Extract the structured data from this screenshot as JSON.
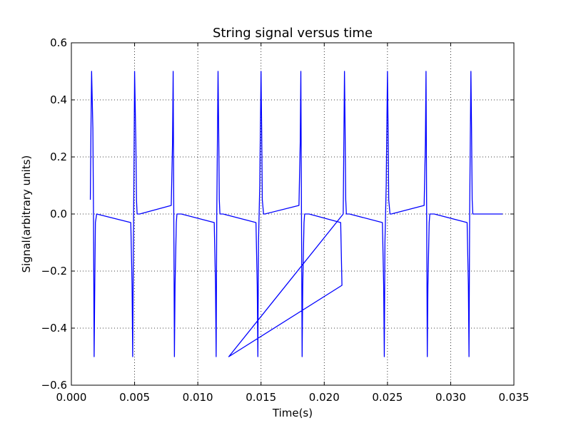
{
  "chart_data": {
    "type": "line",
    "title": "String signal versus time",
    "xlabel": "Time(s)",
    "ylabel": "Signal(arbitrary units)",
    "xlim": [
      0.0,
      0.035
    ],
    "ylim": [
      -0.6,
      0.6
    ],
    "grid": true,
    "x_ticks": [
      "0.000",
      "0.005",
      "0.010",
      "0.015",
      "0.020",
      "0.025",
      "0.030",
      "0.035"
    ],
    "y_ticks": [
      "−0.6",
      "−0.4",
      "−0.2",
      "0.0",
      "0.2",
      "0.4",
      "0.6"
    ],
    "x_tick_values": [
      0.0,
      0.005,
      0.01,
      0.015,
      0.02,
      0.025,
      0.03,
      0.035
    ],
    "y_tick_values": [
      -0.6,
      -0.4,
      -0.2,
      0.0,
      0.2,
      0.4,
      0.6
    ],
    "series": [
      {
        "color": "#0000ff",
        "x": [
          0.0015,
          0.00155,
          0.0016,
          0.0017,
          0.00175,
          0.0018,
          0.00185,
          0.0019,
          0.002,
          0.0047,
          0.0048,
          0.00485,
          0.0049,
          0.00495,
          0.005,
          0.0051,
          0.00515,
          0.0052,
          0.0053,
          0.0054,
          0.0079,
          0.008,
          0.00805,
          0.0081,
          0.00815,
          0.0082,
          0.0083,
          0.00835,
          0.0084,
          0.00845,
          0.0085,
          0.0086,
          0.0087,
          0.0113,
          0.0114,
          0.01145,
          0.0115,
          0.0116,
          0.01165,
          0.0117,
          0.01175,
          0.0118,
          0.0119,
          0.012,
          0.0146,
          0.0147,
          0.01475,
          0.0148,
          0.0149,
          0.015,
          0.01505,
          0.0151,
          0.0152,
          0.0153,
          0.018,
          0.0181,
          0.01815,
          0.0182,
          0.01825,
          0.0183,
          0.0184,
          0.01845,
          0.0185,
          0.01855,
          0.0186,
          0.0187,
          0.0188,
          0.0213,
          0.0214,
          0.01245,
          0.0215,
          0.0216,
          0.02165,
          0.0217,
          0.02175,
          0.0218,
          0.0219,
          0.022,
          0.0246,
          0.0247,
          0.02475,
          0.0248,
          0.0249,
          0.025,
          0.02505,
          0.0251,
          0.0252,
          0.0253,
          0.0279,
          0.028,
          0.02805,
          0.0281,
          0.02815,
          0.0282,
          0.0283,
          0.02835,
          0.0284,
          0.02845,
          0.0285,
          0.0286,
          0.0287,
          0.0313,
          0.0314,
          0.03145,
          0.0315,
          0.0316,
          0.03165,
          0.0317,
          0.03175,
          0.0318,
          0.0319,
          0.032,
          0.0341
        ],
        "y": [
          0.05,
          0.3,
          0.5,
          0.3,
          0.0,
          -0.5,
          -0.25,
          -0.03,
          0.0,
          -0.03,
          -0.25,
          -0.5,
          -0.15,
          0.15,
          0.5,
          0.25,
          0.05,
          0.0,
          0.0,
          0.0,
          0.03,
          0.25,
          0.5,
          0.0,
          -0.5,
          -0.25,
          -0.03,
          0.0,
          0.0,
          0.0,
          0.0,
          0.0,
          0.0,
          -0.03,
          -0.25,
          -0.5,
          0.0,
          0.5,
          0.3,
          0.05,
          0.0,
          0.0,
          0.0,
          0.0,
          -0.03,
          -0.25,
          -0.5,
          -0.1,
          0.1,
          0.5,
          0.3,
          0.05,
          0.0,
          0.0,
          0.03,
          0.25,
          0.5,
          0.0,
          -0.5,
          -0.25,
          -0.03,
          0.0,
          0.0,
          0.0,
          0.0,
          0.0,
          0.0,
          -0.03,
          -0.25,
          -0.5,
          0.0,
          0.5,
          0.3,
          0.05,
          0.0,
          0.0,
          0.0,
          0.0,
          -0.03,
          -0.25,
          -0.5,
          -0.1,
          0.1,
          0.5,
          0.3,
          0.05,
          0.0,
          0.0,
          0.03,
          0.25,
          0.5,
          0.0,
          -0.5,
          -0.25,
          -0.03,
          0.0,
          0.0,
          0.0,
          0.0,
          0.0,
          0.0,
          -0.03,
          -0.25,
          -0.5,
          0.0,
          0.5,
          0.3,
          0.05,
          0.0,
          0.0,
          0.0,
          0.0,
          0.0
        ]
      }
    ]
  }
}
